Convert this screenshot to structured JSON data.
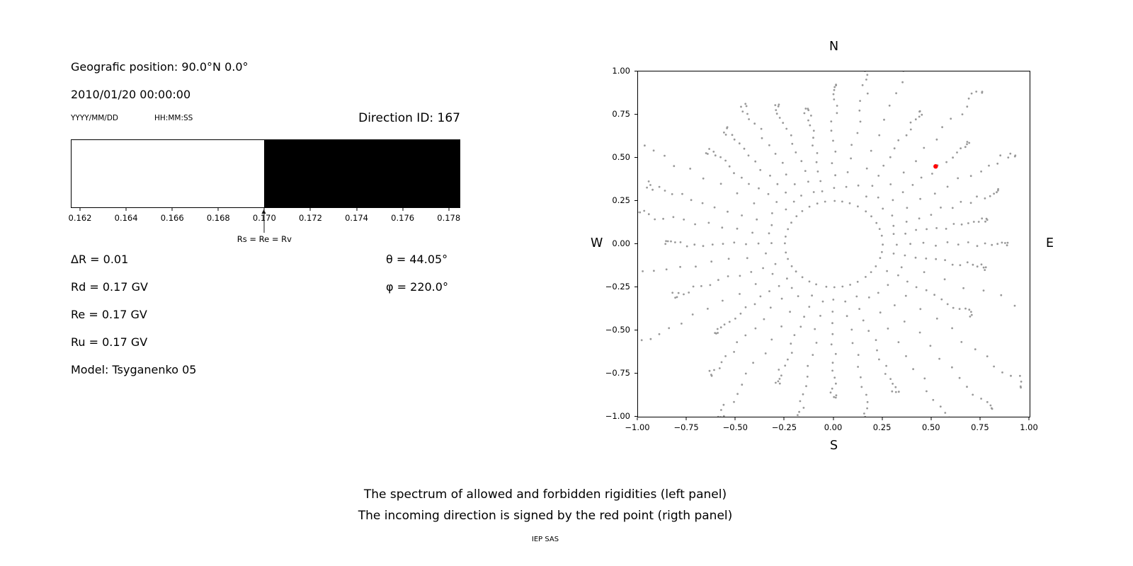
{
  "left_panel": {
    "position_label": "Geografic position: 90.0°N 0.0°",
    "datetime": "2010/01/20 00:00:00",
    "date_format_label": "YYYY/MM/DD",
    "time_format_label": "HH:MM:SS",
    "direction_id_label": "Direction ID: 167",
    "params": {
      "delta_r": "ΔR = 0.01",
      "rd": "Rd = 0.17 GV",
      "re": "Re = 0.17 GV",
      "ru": "Ru = 0.17 GV",
      "model": "Model: Tsyganenko 05",
      "theta": "θ = 44.05°",
      "phi": "φ = 220.0°"
    }
  },
  "right_panel": {
    "north_label": "N",
    "south_label": "S",
    "west_label": "W",
    "east_label": "E"
  },
  "caption": {
    "line1": "The spectrum of allowed and forbidden rigidities (left panel)",
    "line2": "The incoming direction is signed by the red point (rigth panel)",
    "credit": "IEP SAS"
  },
  "chart_data": [
    {
      "type": "area",
      "panel": "left",
      "title": "Rigidity spectrum (white = allowed, black = forbidden)",
      "xlim": [
        0.1616,
        0.1785
      ],
      "x_ticks": [
        0.162,
        0.164,
        0.166,
        0.168,
        0.17,
        0.172,
        0.174,
        0.176,
        0.178
      ],
      "x_tick_labels": [
        "0.162",
        "0.164",
        "0.166",
        "0.168",
        "0.170",
        "0.172",
        "0.174",
        "0.176",
        "0.178"
      ],
      "regions": [
        {
          "label": "allowed",
          "from": 0.1616,
          "to": 0.17,
          "color": "#ffffff"
        },
        {
          "label": "forbidden",
          "from": 0.17,
          "to": 0.1785,
          "color": "#000000"
        }
      ],
      "annotation": {
        "x": 0.17,
        "label": "Rs = Re = Rv"
      }
    },
    {
      "type": "scatter",
      "panel": "right",
      "xlim": [
        -1,
        1
      ],
      "ylim": [
        -1,
        1
      ],
      "grid": false,
      "x_ticks": [
        -1.0,
        -0.75,
        -0.5,
        -0.25,
        0.0,
        0.25,
        0.5,
        0.75,
        1.0
      ],
      "x_tick_labels": [
        "−1.00",
        "−0.75",
        "−0.50",
        "−0.25",
        "0.00",
        "0.25",
        "0.50",
        "0.75",
        "1.00"
      ],
      "y_ticks": [
        1.0,
        0.75,
        0.5,
        0.25,
        0.0,
        -0.25,
        -0.5,
        -0.75,
        -1.0
      ],
      "y_tick_labels": [
        "1.00",
        "0.75",
        "0.50",
        "0.25",
        "0.00",
        "−0.25",
        "−0.50",
        "−0.75",
        "−1.00"
      ],
      "grey_points": {
        "color": "#999999",
        "pattern": "radial-spokes",
        "spokes": 36,
        "inner_radius": 0.25,
        "zenith_start_deg": 15,
        "zenith_step_deg": 5,
        "tip_min": 0.78,
        "tip_max": 1.38,
        "angle_jitter_deg": 2.5,
        "dot_radius_px": 1.4,
        "seed": 7
      },
      "red_point": {
        "x": 0.52,
        "y": 0.45,
        "color": "#ff0000",
        "radius_px": 3.2
      }
    }
  ]
}
